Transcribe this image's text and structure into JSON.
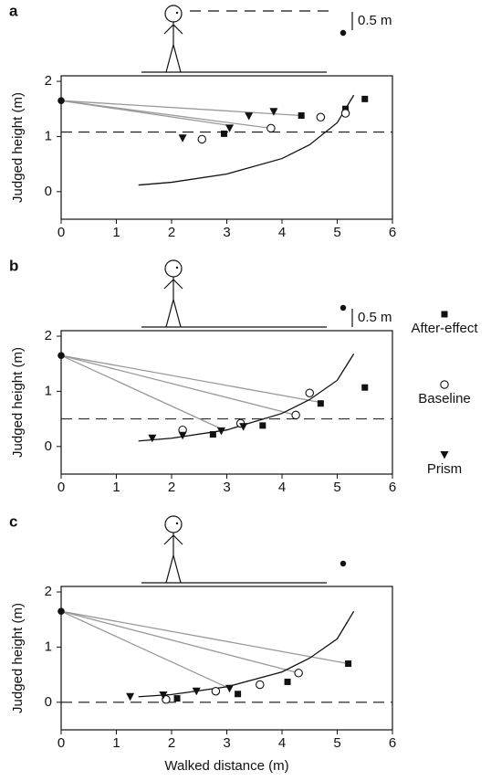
{
  "chart_data": [
    {
      "type": "scatter",
      "panel_label": "a",
      "ylabel": "Judged height (m)",
      "scale_label": "0.5 m",
      "xlim": [
        0,
        6
      ],
      "ylim": [
        -0.5,
        2.1
      ],
      "xticks": [
        0,
        1,
        2,
        3,
        4,
        5,
        6
      ],
      "yticks": [
        0,
        1,
        2
      ],
      "reference_y": 1.08,
      "origin_point": {
        "x": 0,
        "y": 1.65
      },
      "rays": {
        "x": [
          3.8,
          3.05,
          4.35
        ],
        "y": [
          1.15,
          1.2,
          1.38
        ]
      },
      "curve": {
        "x": [
          1.4,
          2,
          3,
          4,
          4.5,
          5,
          5.3
        ],
        "y": [
          0.12,
          0.17,
          0.32,
          0.6,
          0.85,
          1.25,
          1.75
        ]
      },
      "legend": false,
      "series": [
        {
          "marker": "square",
          "color": "#111111",
          "x": [
            2.95,
            4.35,
            5.15,
            5.5
          ],
          "values": [
            1.05,
            1.38,
            1.5,
            1.68
          ]
        },
        {
          "marker": "circle",
          "color": "#111111",
          "x": [
            2.55,
            3.8,
            4.7,
            5.15
          ],
          "values": [
            0.95,
            1.15,
            1.35,
            1.42
          ]
        },
        {
          "marker": "triangle",
          "color": "#111111",
          "x": [
            2.2,
            3.05,
            3.4,
            3.85
          ],
          "values": [
            0.97,
            1.15,
            1.37,
            1.45
          ]
        }
      ]
    },
    {
      "type": "scatter",
      "panel_label": "b",
      "ylabel": "Judged height (m)",
      "scale_label": "0.5 m",
      "xlim": [
        0,
        6
      ],
      "ylim": [
        -0.5,
        2.1
      ],
      "xticks": [
        0,
        1,
        2,
        3,
        4,
        5,
        6
      ],
      "yticks": [
        0,
        1,
        2
      ],
      "reference_y": 0.5,
      "origin_point": {
        "x": 0,
        "y": 1.65
      },
      "rays": {
        "x": [
          4.7,
          4.25,
          2.9
        ],
        "y": [
          0.8,
          0.57,
          0.32
        ]
      },
      "curve": {
        "x": [
          1.4,
          2,
          3,
          4,
          4.5,
          5,
          5.3
        ],
        "y": [
          0.1,
          0.15,
          0.3,
          0.6,
          0.85,
          1.2,
          1.68
        ]
      },
      "legend": true,
      "series": [
        {
          "name": "After-effect",
          "marker": "square",
          "color": "#111111",
          "x": [
            2.75,
            3.65,
            4.7,
            5.5
          ],
          "values": [
            0.22,
            0.38,
            0.78,
            1.07
          ]
        },
        {
          "name": "Baseline",
          "marker": "circle",
          "color": "#111111",
          "x": [
            2.2,
            3.25,
            4.25,
            4.5
          ],
          "values": [
            0.3,
            0.42,
            0.57,
            0.97
          ]
        },
        {
          "name": "Prism",
          "marker": "triangle",
          "color": "#111111",
          "x": [
            1.65,
            2.2,
            2.9,
            3.3
          ],
          "values": [
            0.15,
            0.2,
            0.28,
            0.36
          ]
        }
      ]
    },
    {
      "type": "scatter",
      "panel_label": "c",
      "ylabel": "Judged height (m)",
      "xlabel": "Walked distance (m)",
      "xlim": [
        0,
        6
      ],
      "ylim": [
        -0.5,
        2.1
      ],
      "xticks": [
        0,
        1,
        2,
        3,
        4,
        5,
        6
      ],
      "yticks": [
        0,
        1,
        2
      ],
      "reference_y": 0,
      "origin_point": {
        "x": 0,
        "y": 1.65
      },
      "rays": {
        "x": [
          5.2,
          4.3,
          3.05
        ],
        "y": [
          0.7,
          0.53,
          0.25
        ]
      },
      "curve": {
        "x": [
          1.4,
          2,
          3,
          4,
          4.5,
          5,
          5.3
        ],
        "y": [
          0.1,
          0.14,
          0.28,
          0.55,
          0.8,
          1.15,
          1.65
        ]
      },
      "legend": false,
      "series": [
        {
          "marker": "square",
          "color": "#111111",
          "x": [
            2.1,
            3.2,
            4.1,
            5.2
          ],
          "values": [
            0.07,
            0.15,
            0.37,
            0.7
          ]
        },
        {
          "marker": "circle",
          "color": "#111111",
          "x": [
            1.9,
            2.8,
            3.6,
            4.3
          ],
          "values": [
            0.05,
            0.2,
            0.32,
            0.53
          ]
        },
        {
          "marker": "triangle",
          "color": "#111111",
          "x": [
            1.25,
            1.85,
            2.45,
            3.05
          ],
          "values": [
            0.1,
            0.13,
            0.2,
            0.25
          ]
        }
      ]
    }
  ]
}
